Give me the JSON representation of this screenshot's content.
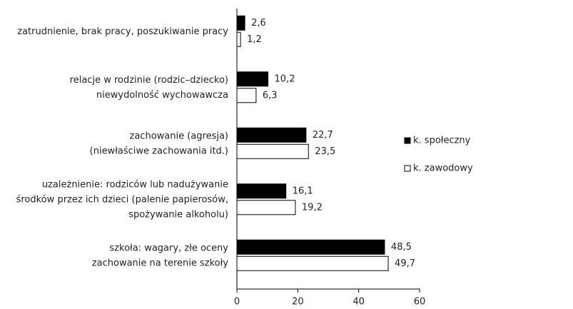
{
  "chart_data": {
    "type": "bar",
    "orientation": "horizontal",
    "categories": [
      [
        "zatrudnienie, brak pracy, poszukiwanie pracy"
      ],
      [
        "relacje w rodzinie (rodzic–dziecko)",
        "niewydolność wychowawcza"
      ],
      [
        "zachowanie (agresja)",
        "(niewłaściwe zachowania itd.)"
      ],
      [
        "uzależnienie: rodziców lub nadużywanie",
        "środków przez ich dzieci (palenie papierosów,",
        "spożywanie alkoholu)"
      ],
      [
        "szkoła: wagary, złe oceny",
        "zachowanie na terenie szkoły"
      ]
    ],
    "series": [
      {
        "name": "k. społeczny",
        "color": "#000000",
        "values": [
          2.6,
          10.2,
          22.7,
          16.1,
          48.5
        ],
        "value_labels": [
          "2,6",
          "10,2",
          "22,7",
          "16,1",
          "48,5"
        ]
      },
      {
        "name": "k. zawodowy",
        "color": "#ffffff",
        "values": [
          1.2,
          6.3,
          23.5,
          19.2,
          49.7
        ],
        "value_labels": [
          "1,2",
          "6,3",
          "23,5",
          "19,2",
          "49,7"
        ]
      }
    ],
    "xlim": [
      0,
      60
    ],
    "xticks": [
      0,
      20,
      40,
      60
    ],
    "legend": "right"
  }
}
